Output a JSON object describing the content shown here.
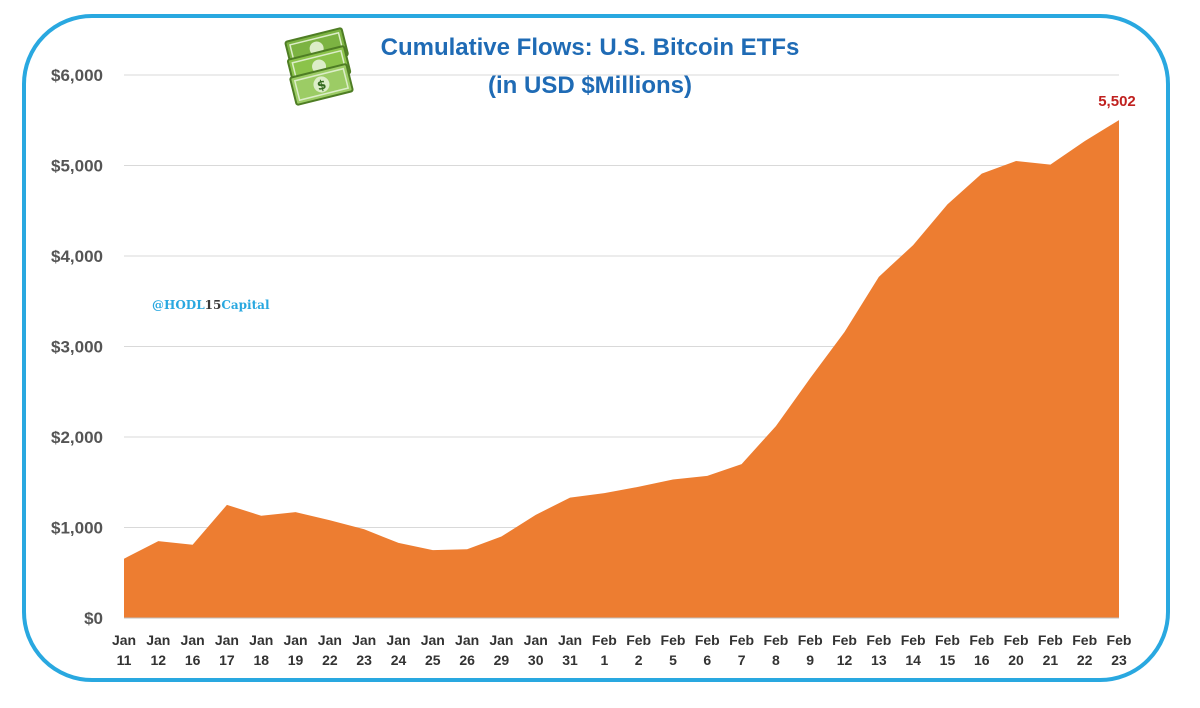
{
  "watermark": {
    "prefix": "@HODL",
    "number": "15",
    "suffix": "Capital"
  },
  "icons": {
    "title_icon": "money-stack-icon"
  },
  "colors": {
    "area": "#ed7d31",
    "title": "#1f6bb5",
    "frame": "#29a8e0",
    "data_label": "#c0211f",
    "grid": "#d9d9d9"
  },
  "chart_data": {
    "type": "area",
    "title": "Cumulative Flows: U.S. Bitcoin ETFs",
    "subtitle": "(in USD $Millions)",
    "xlabel": "",
    "ylabel": "",
    "ylim": [
      0,
      6000
    ],
    "yticks": [
      0,
      1000,
      2000,
      3000,
      4000,
      5000,
      6000
    ],
    "ytick_labels": [
      "$0",
      "$1,000",
      "$2,000",
      "$3,000",
      "$4,000",
      "$5,000",
      "$6,000"
    ],
    "grid": true,
    "legend": "none",
    "categories": [
      [
        "Jan",
        "11"
      ],
      [
        "Jan",
        "12"
      ],
      [
        "Jan",
        "16"
      ],
      [
        "Jan",
        "17"
      ],
      [
        "Jan",
        "18"
      ],
      [
        "Jan",
        "19"
      ],
      [
        "Jan",
        "22"
      ],
      [
        "Jan",
        "23"
      ],
      [
        "Jan",
        "24"
      ],
      [
        "Jan",
        "25"
      ],
      [
        "Jan",
        "26"
      ],
      [
        "Jan",
        "29"
      ],
      [
        "Jan",
        "30"
      ],
      [
        "Jan",
        "31"
      ],
      [
        "Feb",
        "1"
      ],
      [
        "Feb",
        "2"
      ],
      [
        "Feb",
        "5"
      ],
      [
        "Feb",
        "6"
      ],
      [
        "Feb",
        "7"
      ],
      [
        "Feb",
        "8"
      ],
      [
        "Feb",
        "9"
      ],
      [
        "Feb",
        "12"
      ],
      [
        "Feb",
        "13"
      ],
      [
        "Feb",
        "14"
      ],
      [
        "Feb",
        "15"
      ],
      [
        "Feb",
        "16"
      ],
      [
        "Feb",
        "20"
      ],
      [
        "Feb",
        "21"
      ],
      [
        "Feb",
        "22"
      ],
      [
        "Feb",
        "23"
      ]
    ],
    "values": [
      655,
      850,
      810,
      1250,
      1130,
      1170,
      1080,
      980,
      830,
      750,
      760,
      900,
      1140,
      1330,
      1380,
      1450,
      1530,
      1570,
      1700,
      2120,
      2650,
      3160,
      3770,
      4120,
      4570,
      4910,
      5050,
      5010,
      5270,
      5502
    ],
    "annotations": [
      {
        "index": 29,
        "text": "5,502"
      }
    ]
  }
}
